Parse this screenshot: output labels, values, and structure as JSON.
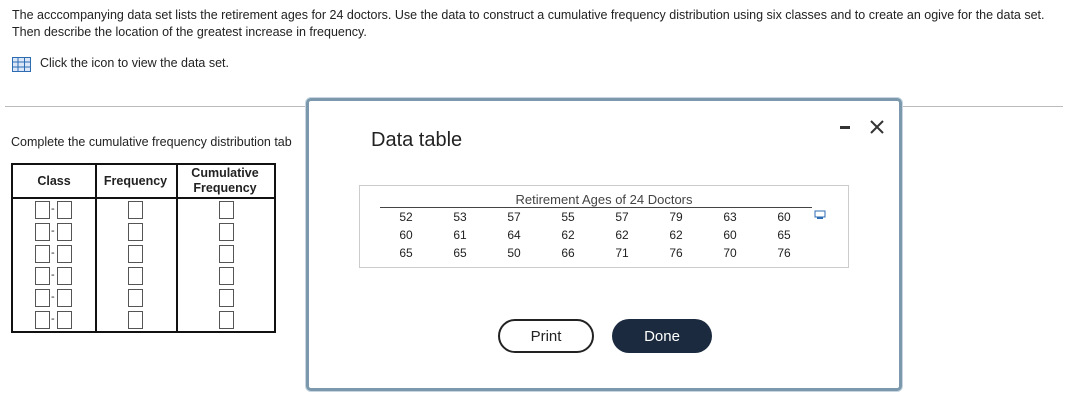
{
  "question": {
    "text": "The acccompanying data set lists the retirement ages for 24 doctors. Use the data to construct a cumulative frequency distribution using six classes and to create an ogive for the data set. Then describe the location of the greatest increase in frequency.",
    "link": "Click the icon to view the data set."
  },
  "instruction": "Complete the cumulative frequency distribution tab",
  "answer_table": {
    "headers": [
      "Class",
      "Frequency",
      "Cumulative Frequency"
    ],
    "class_separator": "-",
    "row_count": 6
  },
  "dialog": {
    "title": "Data table",
    "data_table": {
      "title": "Retirement Ages of 24 Doctors",
      "rows": [
        [
          52,
          53,
          57,
          55,
          57,
          79,
          63,
          60
        ],
        [
          60,
          61,
          64,
          62,
          62,
          62,
          60,
          65
        ],
        [
          65,
          65,
          50,
          66,
          71,
          76,
          70,
          76
        ]
      ]
    },
    "buttons": [
      "Print",
      "Done"
    ]
  }
}
